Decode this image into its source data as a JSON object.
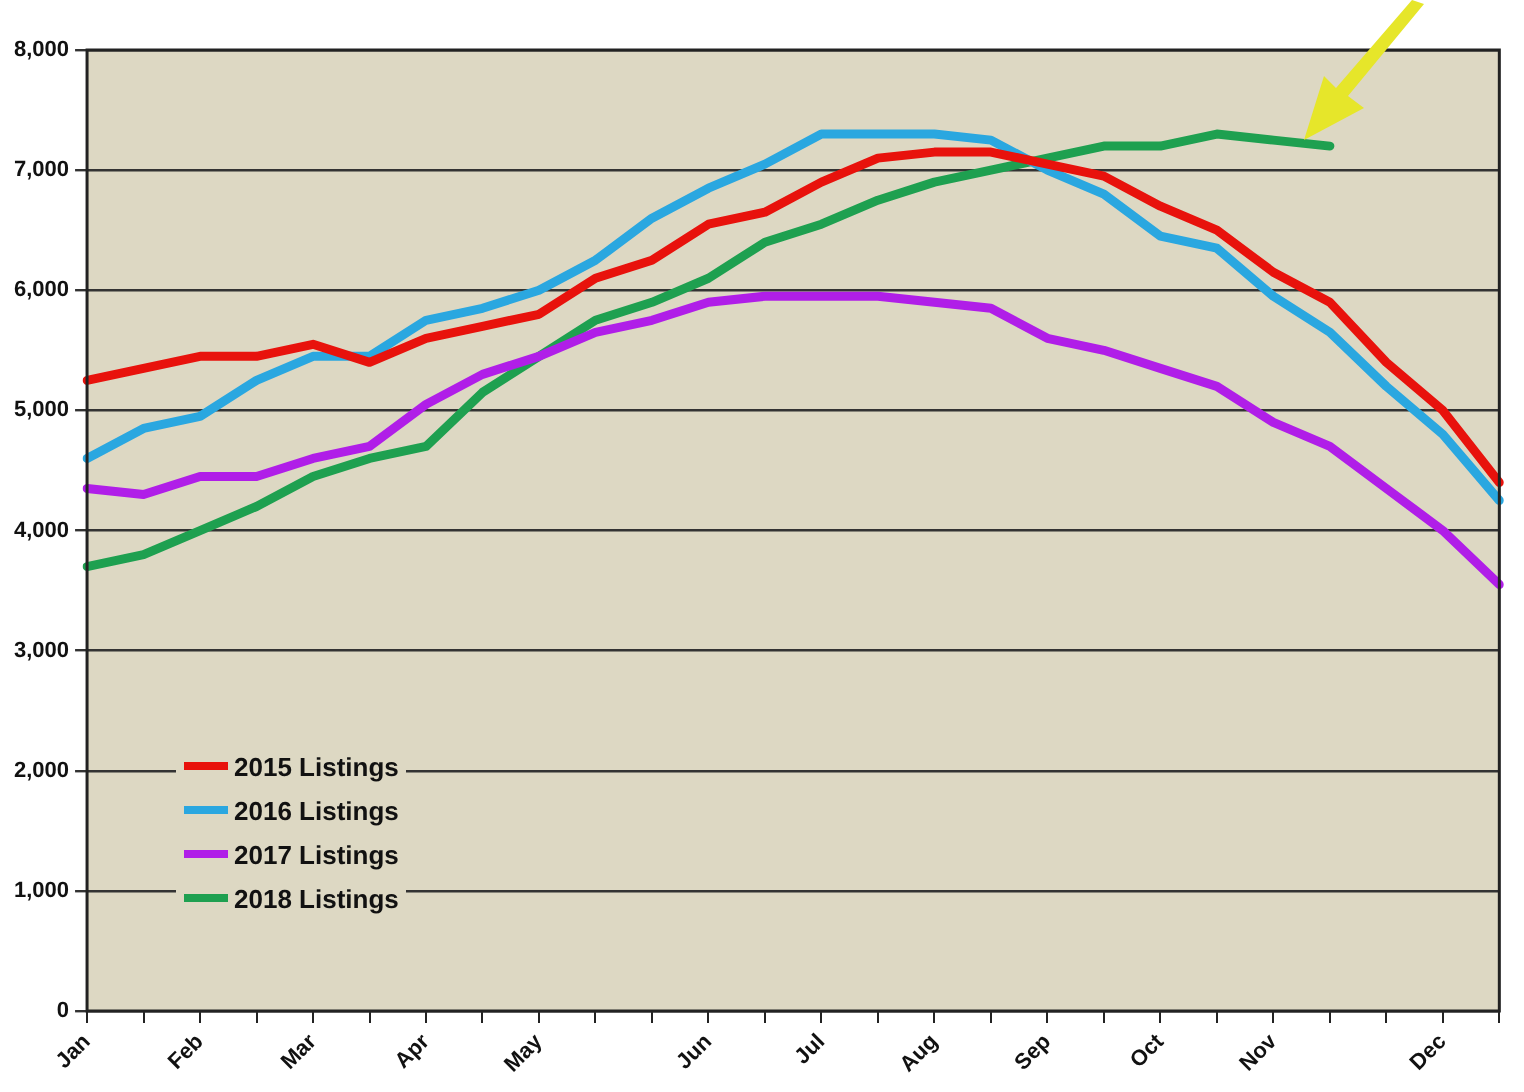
{
  "chart_data": {
    "type": "line",
    "categories": [
      "Jan",
      null,
      "Feb",
      null,
      "Mar",
      null,
      "Apr",
      null,
      "May",
      null,
      null,
      "Jun",
      null,
      "Jul",
      null,
      "Aug",
      null,
      "Sep",
      null,
      "Oct",
      null,
      "Nov",
      null,
      null,
      "Dec",
      null
    ],
    "ylim": [
      0,
      8000
    ],
    "yticks": [
      {
        "value": 0,
        "label": "0"
      },
      {
        "value": 1000,
        "label": "1,000"
      },
      {
        "value": 2000,
        "label": "2,000"
      },
      {
        "value": 3000,
        "label": "3,000"
      },
      {
        "value": 4000,
        "label": "4,000"
      },
      {
        "value": 5000,
        "label": "5,000"
      },
      {
        "value": 6000,
        "label": "6,000"
      },
      {
        "value": 7000,
        "label": "7,000"
      },
      {
        "value": 8000,
        "label": "8,000"
      }
    ],
    "grid": "y",
    "legend": "bottom left",
    "marker": "none",
    "line_style": "solid",
    "series": [
      {
        "name": "2015 Listings",
        "color": "#e8120c",
        "values": [
          5250,
          5350,
          5450,
          5450,
          5550,
          5400,
          5600,
          5700,
          5800,
          6100,
          6250,
          6550,
          6650,
          6900,
          7100,
          7150,
          7150,
          7050,
          6950,
          6700,
          6500,
          6150,
          5900,
          5400,
          5000,
          4400
        ]
      },
      {
        "name": "2016 Listings",
        "color": "#2aa7e0",
        "values": [
          4600,
          4850,
          4950,
          5250,
          5450,
          5450,
          5750,
          5850,
          6000,
          6250,
          6600,
          6850,
          7050,
          7300,
          7300,
          7300,
          7250,
          7000,
          6800,
          6450,
          6350,
          5950,
          5650,
          5200,
          4800,
          4250
        ]
      },
      {
        "name": "2017 Listings",
        "color": "#b01ee8",
        "values": [
          4350,
          4300,
          4450,
          4450,
          4600,
          4700,
          5050,
          5300,
          5450,
          5650,
          5750,
          5900,
          5950,
          5950,
          5950,
          5900,
          5850,
          5600,
          5500,
          5350,
          5200,
          4900,
          4700,
          4350,
          4000,
          3550
        ]
      },
      {
        "name": "2018 Listings",
        "color": "#1ea050",
        "values": [
          3700,
          3800,
          4000,
          4200,
          4450,
          4600,
          4700,
          5150,
          5450,
          5750,
          5900,
          6100,
          6400,
          6550,
          6750,
          6900,
          7000,
          7100,
          7200,
          7200,
          7300,
          7250,
          7200,
          null,
          null,
          null
        ]
      }
    ]
  }
}
